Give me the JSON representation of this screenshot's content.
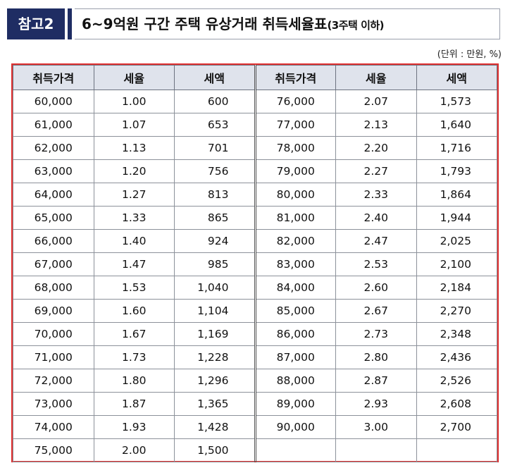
{
  "header": {
    "badge": "참고2",
    "title": "6~9억원 구간 주택 유상거래 취득세율표",
    "title_suffix": "(3주택 이하)"
  },
  "unit": "(단위 : 만원, %)",
  "table": {
    "columns": [
      "취득가격",
      "세율",
      "세액",
      "취득가격",
      "세율",
      "세액"
    ],
    "rows": [
      [
        "60,000",
        "1.00",
        "600",
        "76,000",
        "2.07",
        "1,573"
      ],
      [
        "61,000",
        "1.07",
        "653",
        "77,000",
        "2.13",
        "1,640"
      ],
      [
        "62,000",
        "1.13",
        "701",
        "78,000",
        "2.20",
        "1,716"
      ],
      [
        "63,000",
        "1.20",
        "756",
        "79,000",
        "2.27",
        "1,793"
      ],
      [
        "64,000",
        "1.27",
        "813",
        "80,000",
        "2.33",
        "1,864"
      ],
      [
        "65,000",
        "1.33",
        "865",
        "81,000",
        "2.40",
        "1,944"
      ],
      [
        "66,000",
        "1.40",
        "924",
        "82,000",
        "2.47",
        "2,025"
      ],
      [
        "67,000",
        "1.47",
        "985",
        "83,000",
        "2.53",
        "2,100"
      ],
      [
        "68,000",
        "1.53",
        "1,040",
        "84,000",
        "2.60",
        "2,184"
      ],
      [
        "69,000",
        "1.60",
        "1,104",
        "85,000",
        "2.67",
        "2,270"
      ],
      [
        "70,000",
        "1.67",
        "1,169",
        "86,000",
        "2.73",
        "2,348"
      ],
      [
        "71,000",
        "1.73",
        "1,228",
        "87,000",
        "2.80",
        "2,436"
      ],
      [
        "72,000",
        "1.80",
        "1,296",
        "88,000",
        "2.87",
        "2,526"
      ],
      [
        "73,000",
        "1.87",
        "1,365",
        "89,000",
        "2.93",
        "2,608"
      ],
      [
        "74,000",
        "1.93",
        "1,428",
        "90,000",
        "3.00",
        "2,700"
      ],
      [
        "75,000",
        "2.00",
        "1,500",
        "",
        "",
        ""
      ]
    ]
  },
  "colors": {
    "badge_bg": "#1f2d63",
    "header_bg": "#dfe3ec",
    "highlight_border": "#e03030"
  }
}
